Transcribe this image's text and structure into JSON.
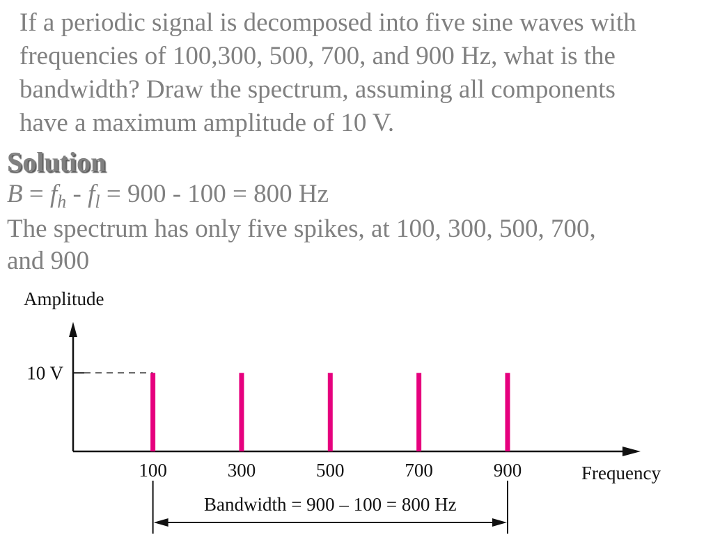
{
  "document": {
    "question": [
      "If a periodic signal is decomposed into five sine waves with",
      "frequencies of 100,300, 500, 700, and 900 Hz, what is the",
      "bandwidth? Draw the spectrum, assuming all components",
      "have a maximum amplitude of 10 V."
    ],
    "heading": "Solution",
    "formula": [
      "B",
      " = ",
      "f",
      "h",
      " - ",
      "f",
      "l",
      "  = 900 - 100 = 800 Hz"
    ],
    "answer": [
      "The spectrum has only five spikes, at 100, 300, 500, 700,",
      "and 900"
    ]
  },
  "chart_data": {
    "type": "bar",
    "ylabel": "Amplitude",
    "xlabel": "Frequency",
    "x": [
      100,
      300,
      500,
      700,
      900
    ],
    "values": [
      10,
      10,
      10,
      10,
      10
    ],
    "color": "#e6007e",
    "xlim": [
      -80,
      1200
    ],
    "xticks": [
      100,
      300,
      500,
      700,
      900
    ],
    "ylim": [
      0,
      16.5
    ],
    "yticks": [
      {
        "value": 10,
        "label": "10 V"
      }
    ],
    "annotation": "Bandwidth = 900 – 100 = 800 Hz"
  }
}
